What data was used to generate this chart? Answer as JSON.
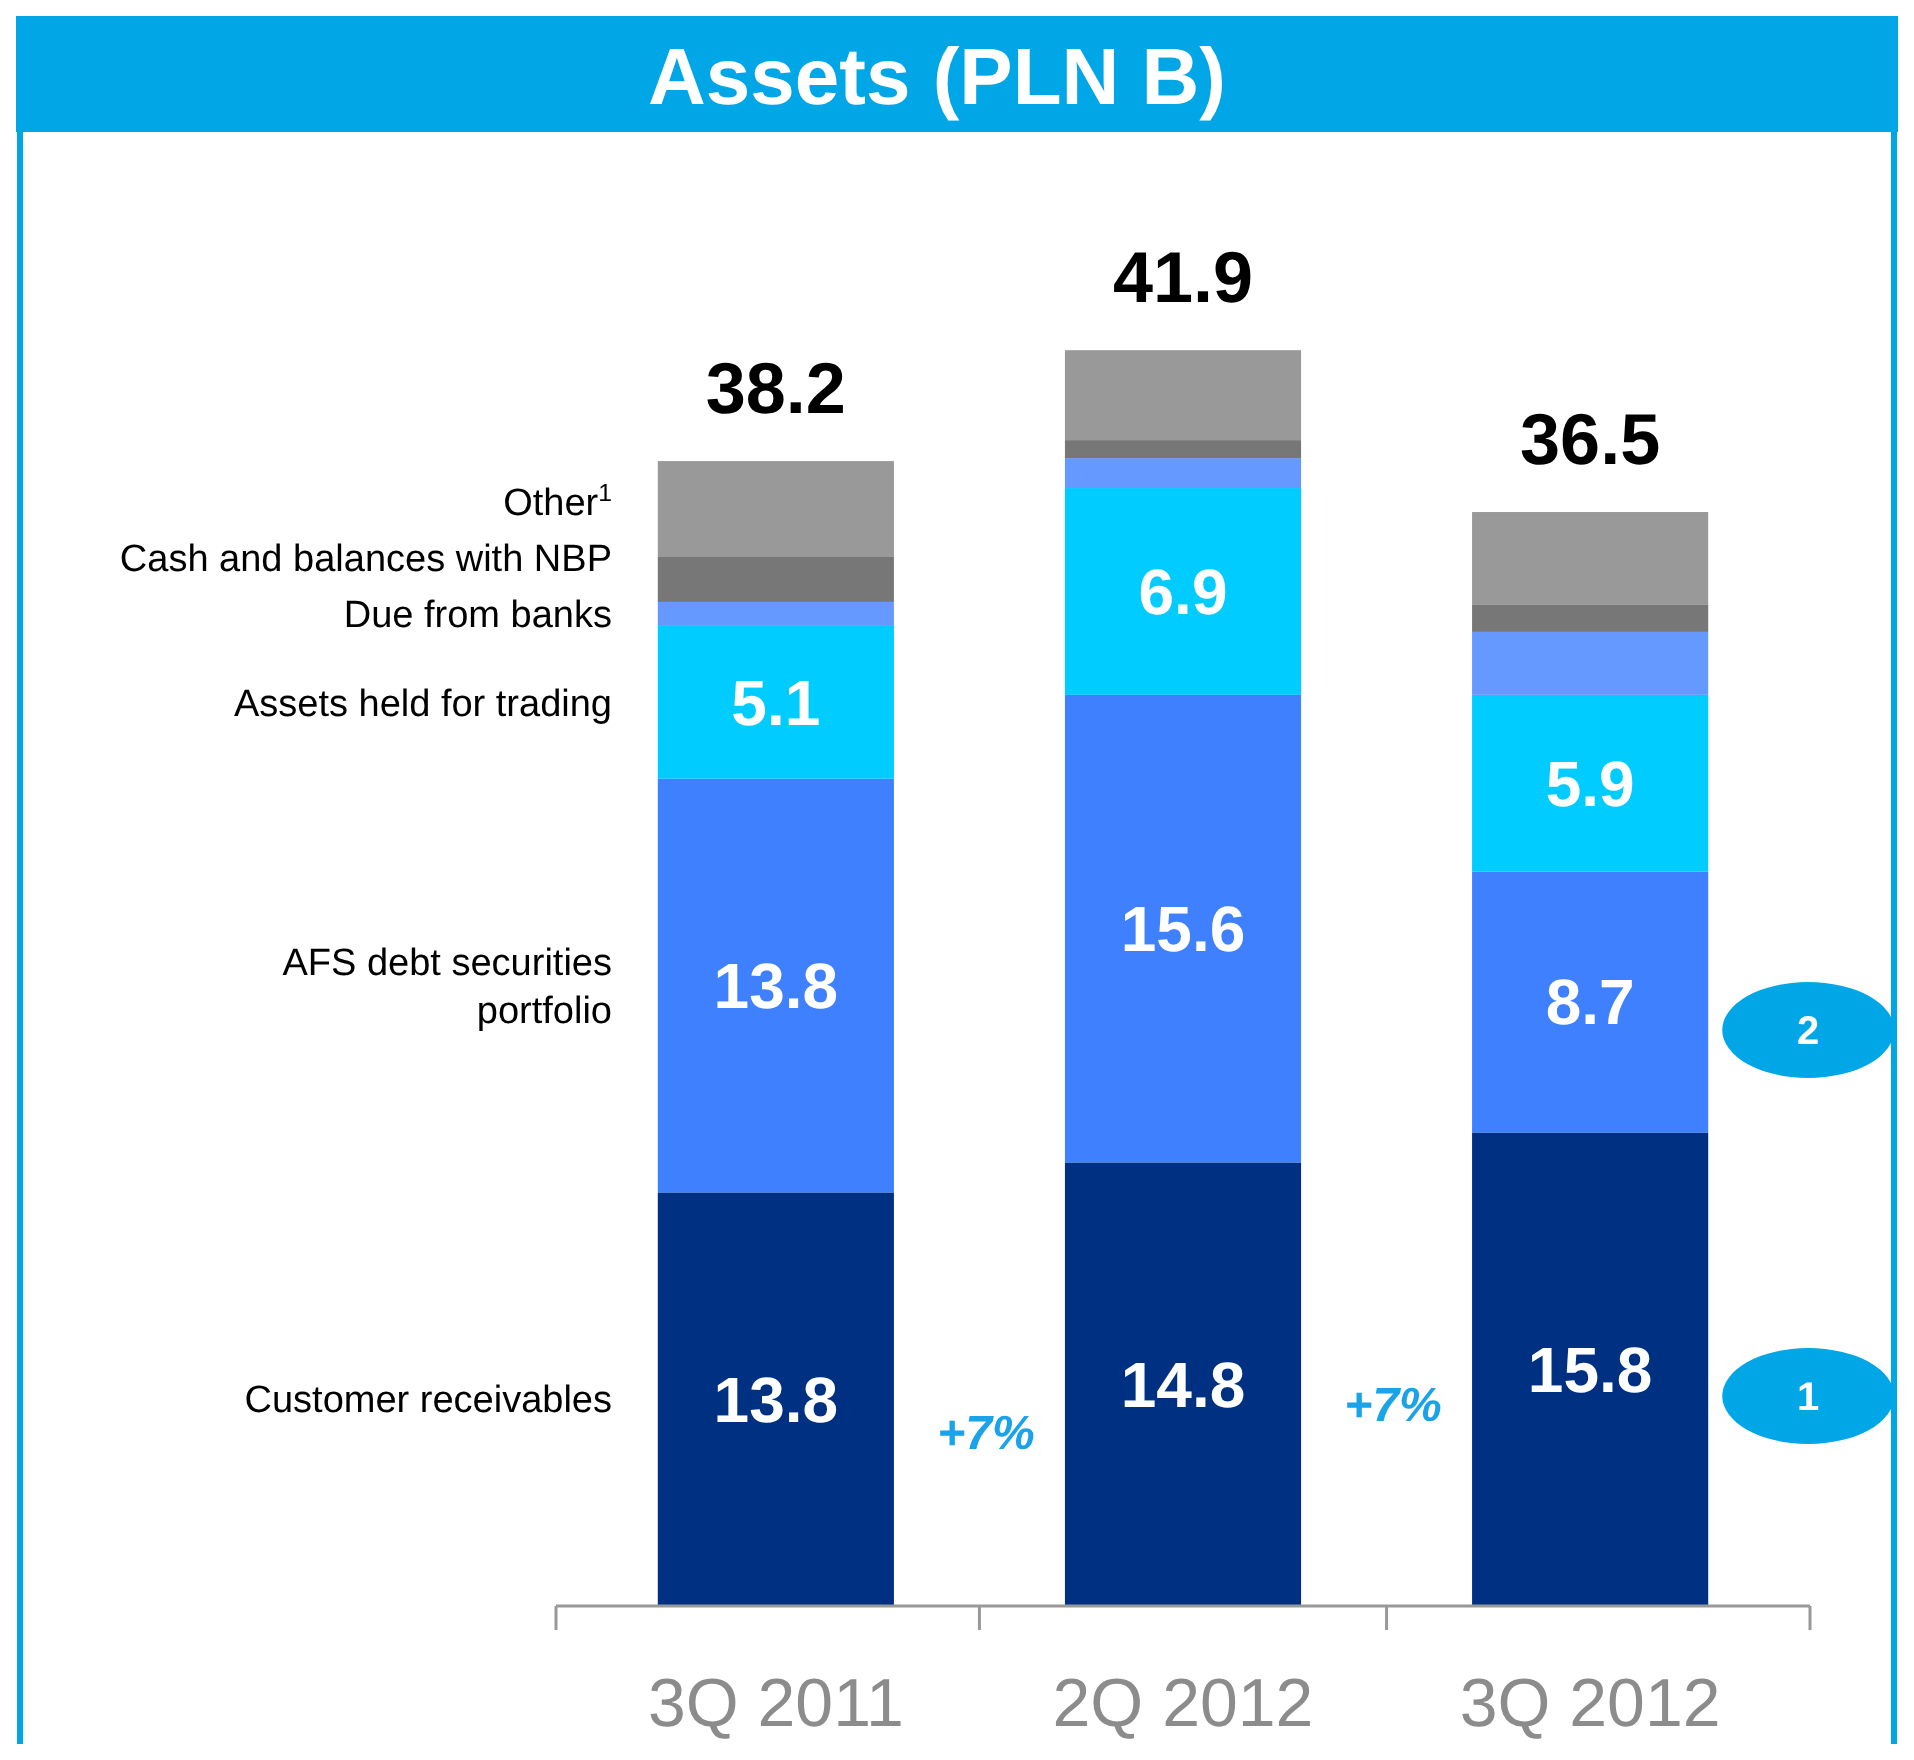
{
  "chart_data": {
    "type": "bar",
    "title": "Assets (PLN B)",
    "stacked": true,
    "categories": [
      "3Q 2011",
      "2Q 2012",
      "3Q 2012"
    ],
    "series": [
      {
        "name": "Customer receivables",
        "color": "#003082",
        "values": [
          13.8,
          14.8,
          15.8
        ],
        "value_labels": [
          "13.8",
          "14.8",
          "15.8"
        ]
      },
      {
        "name": "AFS debt securities portfolio",
        "color": "#3f80ff",
        "values": [
          13.8,
          15.6,
          8.7
        ],
        "value_labels": [
          "13.8",
          "15.6",
          "8.7"
        ]
      },
      {
        "name": "Assets held for trading",
        "color": "#00ccff",
        "values": [
          5.1,
          6.9,
          5.9
        ],
        "value_labels": [
          "5.1",
          "6.9",
          "5.9"
        ]
      },
      {
        "name": "Due from banks",
        "color": "#6699ff",
        "values": [
          0.8,
          1.0,
          2.1
        ]
      },
      {
        "name": "Cash and balances with NBP",
        "color": "#777777",
        "values": [
          1.5,
          0.6,
          0.9
        ]
      },
      {
        "name": "Other$^{1}$",
        "color": "#999999",
        "values": [
          3.2,
          3.0,
          3.1
        ]
      }
    ],
    "totals": [
      "38.2",
      "41.9",
      "36.5"
    ],
    "annotations": [
      "+7%",
      "+7%",
      "1",
      "2"
    ]
  }
}
